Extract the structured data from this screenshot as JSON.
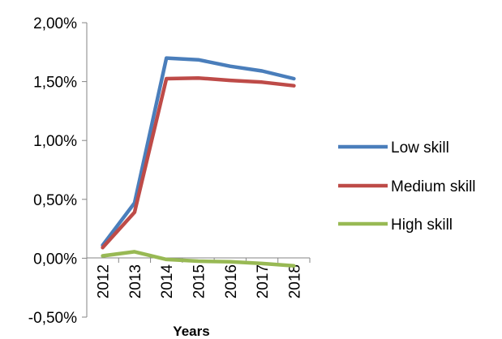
{
  "chart_data": {
    "type": "line",
    "categories": [
      "2012",
      "2013",
      "2014",
      "2015",
      "2016",
      "2017",
      "2018"
    ],
    "series": [
      {
        "name": "Low skill",
        "color": "#4A7EBB",
        "values": [
          0.11,
          0.47,
          1.7,
          1.685,
          1.63,
          1.59,
          1.525
        ]
      },
      {
        "name": "Medium skill",
        "color": "#BE4B48",
        "values": [
          0.09,
          0.39,
          1.525,
          1.53,
          1.51,
          1.495,
          1.465
        ]
      },
      {
        "name": "High skill",
        "color": "#98B954",
        "values": [
          0.02,
          0.055,
          -0.01,
          -0.025,
          -0.03,
          -0.045,
          -0.065
        ]
      }
    ],
    "y_ticks": [
      "2,00%",
      "1,50%",
      "1,00%",
      "0,50%",
      "0,00%",
      "-0,50%"
    ],
    "y_tick_values": [
      2.0,
      1.5,
      1.0,
      0.5,
      0.0,
      -0.5
    ],
    "xlabel": "Years",
    "ylabel": "",
    "ylim": [
      -0.5,
      2.0
    ],
    "legend_position": "right",
    "grid": false
  }
}
